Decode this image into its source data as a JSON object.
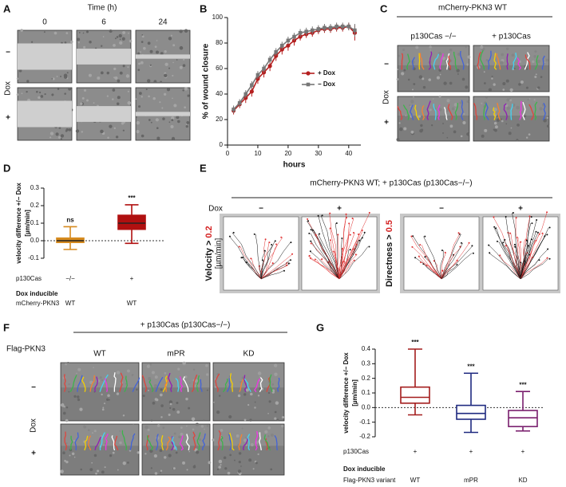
{
  "chart_data": [
    {
      "type": "line",
      "label": "B",
      "ylabel": "% of wound closure",
      "xlabel": "hours",
      "x": [
        2,
        4,
        6,
        8,
        10,
        12,
        14,
        16,
        18,
        20,
        22,
        24,
        26,
        28,
        30,
        32,
        34,
        36,
        38,
        40,
        42
      ],
      "xlim": [
        0,
        44
      ],
      "xticks": [
        0,
        10,
        20,
        30,
        40
      ],
      "ylim": [
        0,
        100
      ],
      "yticks": [
        0,
        20,
        40,
        60,
        80,
        100
      ],
      "legend": "center-right",
      "series": [
        {
          "name": "+ Dox",
          "color": "#b51f1f",
          "marker": "circle",
          "values": [
            27,
            32,
            37,
            42,
            52,
            57,
            62,
            70,
            75,
            78,
            82,
            85,
            87,
            88,
            90,
            91,
            91,
            92,
            92,
            93,
            88
          ],
          "errors": [
            3,
            3,
            4,
            4,
            4,
            4,
            4,
            4,
            4,
            4,
            4,
            3,
            3,
            3,
            3,
            3,
            3,
            3,
            3,
            3,
            6
          ]
        },
        {
          "name": "− Dox",
          "color": "#777777",
          "marker": "square",
          "values": [
            28,
            33,
            40,
            47,
            55,
            60,
            67,
            73,
            78,
            82,
            85,
            88,
            89,
            90,
            91,
            92,
            92,
            93,
            93,
            93,
            90
          ],
          "errors": [
            3,
            3,
            3,
            3,
            3,
            3,
            3,
            3,
            3,
            3,
            3,
            3,
            3,
            3,
            3,
            3,
            3,
            3,
            3,
            3,
            5
          ]
        }
      ]
    },
    {
      "type": "box",
      "label": "D",
      "ylabel": [
        "velocity difference +/− Dox",
        "[µm/min]"
      ],
      "ylim": [
        -0.1,
        0.3
      ],
      "yticks": [
        -0.1,
        {
          "value": 0,
          "label": "0.0"
        },
        0.1,
        0.2,
        0.3
      ],
      "zero_line": true,
      "boxes": [
        {
          "min": -0.05,
          "q1": -0.01,
          "median": 0.0,
          "q3": 0.015,
          "max": 0.08,
          "color": "#d68a1e",
          "annotation": "ns"
        },
        {
          "min": -0.015,
          "q1": 0.065,
          "median": 0.1,
          "q3": 0.145,
          "max": 0.205,
          "color": "#b01010",
          "annotation": "***"
        }
      ],
      "table": [
        {
          "label": "p130Cas",
          "values": [
            "−/−",
            "+"
          ]
        },
        {
          "label": "Dox inducible"
        },
        {
          "label": "mCherry-PKN3",
          "values": [
            "WT",
            "WT"
          ]
        }
      ]
    },
    {
      "type": "box",
      "label": "G",
      "ylabel": [
        "velocity difference +/− Dox",
        "[µm/min]"
      ],
      "ylim": [
        -0.2,
        0.4
      ],
      "yticks": [
        -0.2,
        -0.1,
        {
          "value": 0,
          "label": "0.0"
        },
        0.1,
        0.2,
        0.3,
        0.4
      ],
      "zero_line": true,
      "boxes": [
        {
          "min": -0.05,
          "q1": 0.03,
          "median": 0.07,
          "q3": 0.14,
          "max": 0.4,
          "color": "#a31c1c",
          "annotation": "***"
        },
        {
          "min": -0.17,
          "q1": -0.08,
          "median": -0.04,
          "q3": 0.015,
          "max": 0.235,
          "color": "#1f2a80",
          "annotation": "***"
        },
        {
          "min": -0.16,
          "q1": -0.13,
          "median": -0.07,
          "q3": -0.02,
          "max": 0.11,
          "color": "#7a1f6e",
          "annotation": "***"
        }
      ],
      "table": [
        {
          "label": "p130Cas",
          "values": [
            "+",
            "+",
            "+"
          ]
        },
        {
          "label": "Dox inducible"
        },
        {
          "label": "Flag-PKN3 variant",
          "values": [
            "WT",
            "mPR",
            "KD"
          ]
        }
      ]
    }
  ],
  "panels": {
    "A": {
      "label": "A",
      "title": "Time (h)",
      "columns": [
        "0",
        "6",
        "24"
      ],
      "rows": [
        "−",
        "+"
      ],
      "row_title": "Dox"
    },
    "C": {
      "label": "C",
      "title": "mCherry-PKN3 WT",
      "columns": [
        "p130Cas −/−",
        "+ p130Cas"
      ],
      "rows": [
        "−",
        "+"
      ],
      "row_title": "Dox"
    },
    "E": {
      "label": "E",
      "title": "mCherry-PKN3 WT; + p130Cas (p130Cas−/−)",
      "row_title": "Dox",
      "groups": [
        {
          "criterion": "Velocity >",
          "threshold": "0.2",
          "unit": "[µm/min]",
          "columns": [
            "−",
            "+"
          ]
        },
        {
          "criterion": "Directness >",
          "threshold": "0.5",
          "columns": [
            "−",
            "+"
          ]
        }
      ]
    },
    "F": {
      "label": "F",
      "title": "+ p130Cas (p130Cas−/−)",
      "side_label": "Flag-PKN3",
      "columns": [
        "WT",
        "mPR",
        "KD"
      ],
      "rows": [
        "−",
        "+"
      ],
      "row_title": "Dox"
    }
  }
}
